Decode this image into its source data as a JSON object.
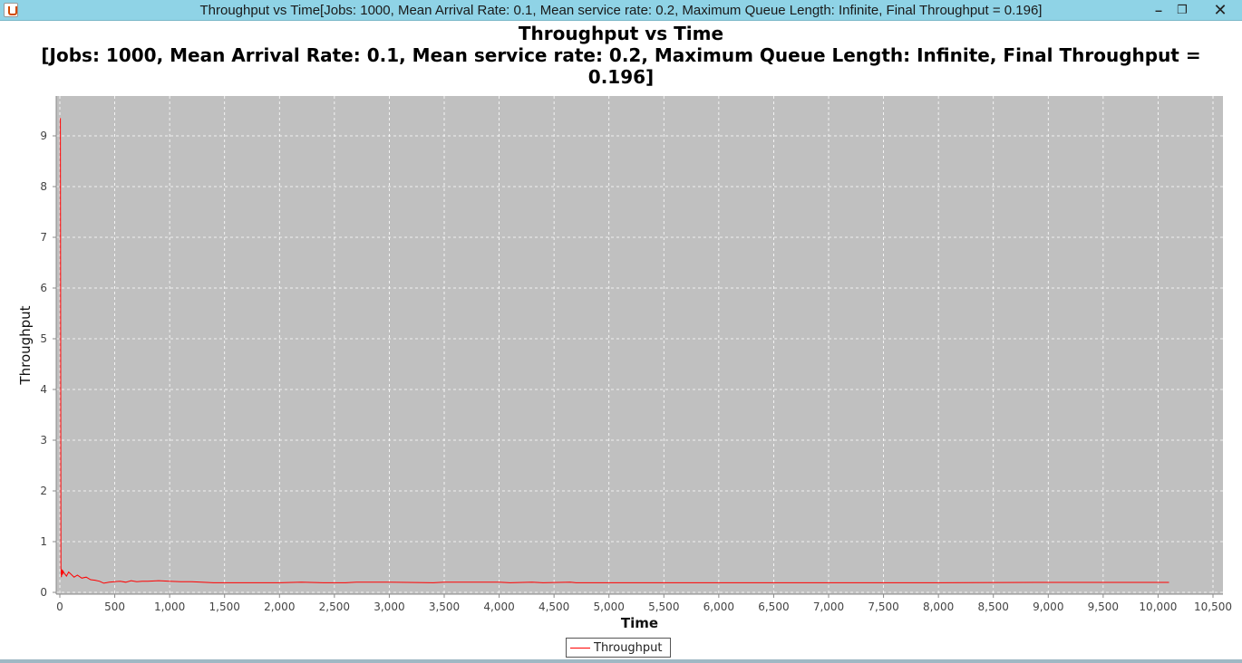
{
  "window": {
    "title": "Throughput vs Time[Jobs: 1000, Mean Arrival Rate: 0.1, Mean service rate: 0.2, Maximum Queue Length: Infinite, Final Throughput = 0.196]",
    "minimize_glyph": "–",
    "restore_glyph": "❐",
    "close_glyph": "✕"
  },
  "chart_data": {
    "type": "line",
    "title": "Throughput vs Time",
    "subtitle": "[Jobs: 1000, Mean Arrival Rate: 0.1, Mean service rate: 0.2, Maximum Queue Length: Infinite, Final Throughput = 0.196]",
    "xlabel": "Time",
    "ylabel": "Throughput",
    "xlim": [
      0,
      10500
    ],
    "ylim": [
      0,
      9.8
    ],
    "x_ticks": [
      0,
      500,
      1000,
      1500,
      2000,
      2500,
      3000,
      3500,
      4000,
      4500,
      5000,
      5500,
      6000,
      6500,
      7000,
      7500,
      8000,
      8500,
      9000,
      9500,
      10000,
      10500
    ],
    "x_tick_labels": [
      "0",
      "500",
      "1,000",
      "1,500",
      "2,000",
      "2,500",
      "3,000",
      "3,500",
      "4,000",
      "4,500",
      "5,000",
      "5,500",
      "6,000",
      "6,500",
      "7,000",
      "7,500",
      "8,000",
      "8,500",
      "9,000",
      "9,500",
      "10,000",
      "10,500"
    ],
    "y_ticks": [
      0,
      1,
      2,
      3,
      4,
      5,
      6,
      7,
      8,
      9
    ],
    "y_tick_labels": [
      "0",
      "1",
      "2",
      "3",
      "4",
      "5",
      "6",
      "7",
      "8",
      "9"
    ],
    "grid": true,
    "plot_background": "#c0c0c0",
    "legend_position": "bottom-center",
    "series": [
      {
        "name": "Throughput",
        "color": "#ff0000",
        "x": [
          5,
          10,
          14,
          20,
          25,
          30,
          40,
          60,
          80,
          100,
          130,
          160,
          200,
          240,
          280,
          320,
          360,
          400,
          450,
          500,
          550,
          600,
          650,
          700,
          750,
          800,
          900,
          1000,
          1100,
          1200,
          1400,
          1600,
          2000,
          2200,
          2400,
          2600,
          2700,
          3000,
          3400,
          3500,
          4000,
          4100,
          4300,
          4400,
          4650,
          4700,
          5000,
          6000,
          7000,
          8000,
          9000,
          10000,
          10100
        ],
        "y": [
          9.35,
          0.5,
          0.3,
          0.45,
          0.35,
          0.42,
          0.38,
          0.32,
          0.4,
          0.36,
          0.3,
          0.34,
          0.28,
          0.3,
          0.25,
          0.24,
          0.22,
          0.18,
          0.2,
          0.21,
          0.22,
          0.2,
          0.23,
          0.21,
          0.22,
          0.22,
          0.23,
          0.22,
          0.21,
          0.21,
          0.19,
          0.19,
          0.19,
          0.2,
          0.19,
          0.19,
          0.2,
          0.2,
          0.19,
          0.2,
          0.2,
          0.19,
          0.2,
          0.19,
          0.2,
          0.19,
          0.19,
          0.19,
          0.19,
          0.19,
          0.196,
          0.196,
          0.196
        ]
      }
    ]
  }
}
